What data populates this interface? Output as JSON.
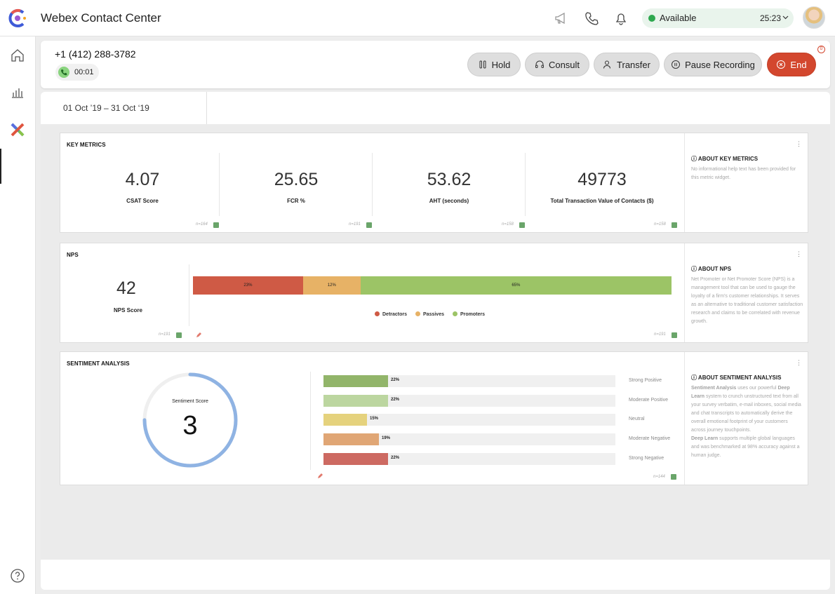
{
  "app": {
    "title": "Webex Contact Center"
  },
  "top": {
    "status_label": "Available",
    "status_time": "25:23",
    "icons": [
      "megaphone-icon",
      "phone-icon",
      "bell-icon",
      "chevron-down-icon",
      "avatar"
    ]
  },
  "call": {
    "number": "+1 (412) 288-3782",
    "timer": "00:01",
    "buttons": {
      "hold": "Hold",
      "consult": "Consult",
      "transfer": "Transfer",
      "pause": "Pause Recording",
      "end": "End"
    },
    "end_badge": "0"
  },
  "filters": {
    "date_range": "01 Oct ’19 – 31 Oct ‘19"
  },
  "key_metrics": {
    "title": "KEY METRICS",
    "items": [
      {
        "value": "4.07",
        "label": "CSAT Score",
        "n": "n=164"
      },
      {
        "value": "25.65",
        "label": "FCR %",
        "n": "n=191"
      },
      {
        "value": "53.62",
        "label": "AHT (seconds)",
        "n": "n=158"
      },
      {
        "value": "49773",
        "label": "Total Transaction Value of Contacts ($)",
        "n": "n=158"
      }
    ],
    "about_title": "ⓘ ABOUT KEY METRICS",
    "about_text": "No informational help text has been provided for this metric widget."
  },
  "nps": {
    "title": "NPS",
    "score": "42",
    "score_label": "NPS Score",
    "n_left": "n=191",
    "n_right": "n=191",
    "segments": [
      {
        "label": "Detractors",
        "pct": "23%",
        "fraction": 0.23,
        "color": "#cf5a45"
      },
      {
        "label": "Passives",
        "pct": "12%",
        "fraction": 0.12,
        "color": "#e7b266"
      },
      {
        "label": "Promoters",
        "pct": "65%",
        "fraction": 0.65,
        "color": "#9cc466"
      }
    ],
    "about_title": "ⓘ ABOUT NPS",
    "about_text": "Net Promoter or Net Promoter Score (NPS) is a management tool that can be used to gauge the loyalty of a firm's customer relationships. It serves as an alternative to traditional customer satisfaction research and claims to be correlated with revenue growth."
  },
  "sentiment": {
    "title": "SENTIMENT ANALYSIS",
    "score_label": "Sentiment Score",
    "score": "3",
    "score_fraction": 0.75,
    "n": "n=144",
    "rows": [
      {
        "label": "Strong Positive",
        "pct": "22%",
        "value": 22,
        "color": "#92b56a"
      },
      {
        "label": "Moderate Positive",
        "pct": "22%",
        "value": 22,
        "color": "#bcd6a0"
      },
      {
        "label": "Neutral",
        "pct": "15%",
        "value": 15,
        "color": "#e5d27d"
      },
      {
        "label": "Moderate Negative",
        "pct": "19%",
        "value": 19,
        "color": "#e0a675"
      },
      {
        "label": "Strong Negative",
        "pct": "22%",
        "value": 22,
        "color": "#cd6a62"
      }
    ],
    "about_title": "ⓘ ABOUT SENTIMENT ANALYSIS",
    "about_p1_bold": "Sentiment Analysis",
    "about_p1": " uses our powerful ",
    "about_p1_bold2": "Deep Learn",
    "about_p1_rest": " system to crunch unstructured text from all your survey verbatim, e-mail inboxes, social media and chat transcripts to automatically derive the overall emotional footprint of your customers across journey touchpoints.",
    "about_p2_bold": "Deep Learn",
    "about_p2_rest": " supports multiple global languages and was benchmarked at 98% accuracy against a human judge."
  },
  "colors": {
    "accent": "#d3472e",
    "available": "#2ea84f",
    "gauge": "#8fb3e3"
  }
}
